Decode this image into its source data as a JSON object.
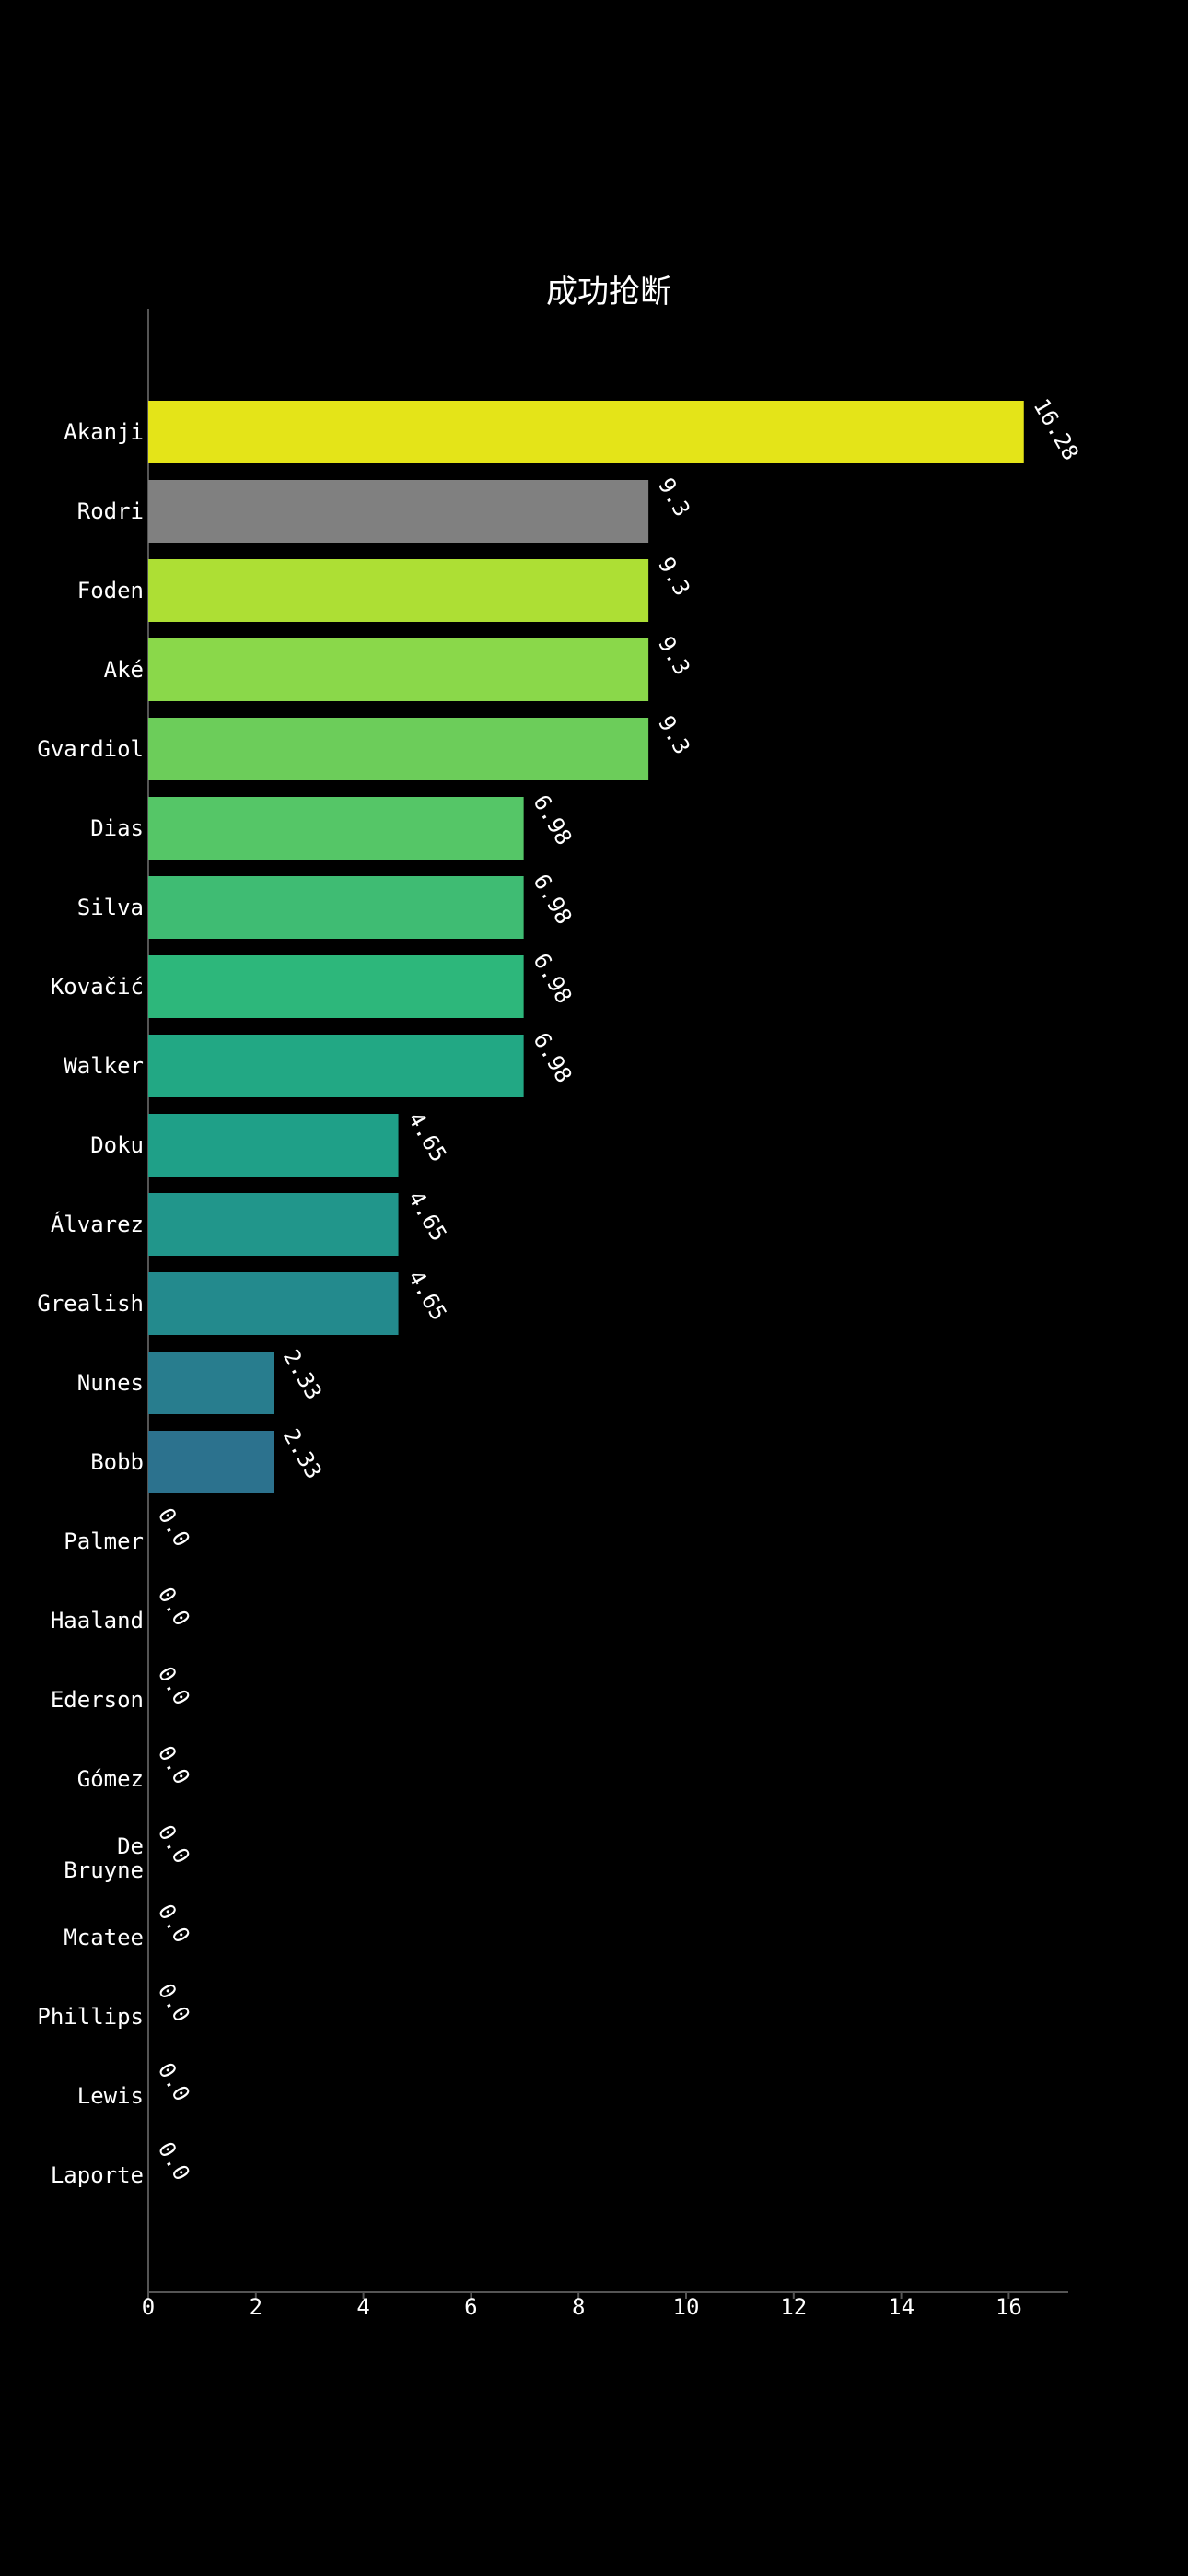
{
  "chart_data": {
    "type": "bar",
    "orientation": "horizontal",
    "title": "成功抢断",
    "xlabel": "",
    "ylabel": "",
    "xlim": [
      0,
      17.1
    ],
    "xticks": [
      0,
      2,
      4,
      6,
      8,
      10,
      12,
      14,
      16
    ],
    "grid": false,
    "categories": [
      {
        "label": [
          "Akanji"
        ],
        "value": 16.28,
        "value_label": "16.28",
        "color": "#e4e418"
      },
      {
        "label": [
          "Rodri"
        ],
        "value": 9.3,
        "value_label": "9.3",
        "color": "#808080"
      },
      {
        "label": [
          "Foden"
        ],
        "value": 9.3,
        "value_label": "9.3",
        "color": "#addf34"
      },
      {
        "label": [
          "Aké"
        ],
        "value": 9.3,
        "value_label": "9.3",
        "color": "#8ad84a"
      },
      {
        "label": [
          "Gvardiol"
        ],
        "value": 9.3,
        "value_label": "9.3",
        "color": "#6ccd5a"
      },
      {
        "label": [
          "Dias"
        ],
        "value": 6.98,
        "value_label": "6.98",
        "color": "#55c667"
      },
      {
        "label": [
          "Silva"
        ],
        "value": 6.98,
        "value_label": "6.98",
        "color": "#3fbc73"
      },
      {
        "label": [
          "Kovačić"
        ],
        "value": 6.98,
        "value_label": "6.98",
        "color": "#2db77b"
      },
      {
        "label": [
          "Walker"
        ],
        "value": 6.98,
        "value_label": "6.98",
        "color": "#22a884"
      },
      {
        "label": [
          "Doku"
        ],
        "value": 4.65,
        "value_label": "4.65",
        "color": "#1fa088"
      },
      {
        "label": [
          "Álvarez"
        ],
        "value": 4.65,
        "value_label": "4.65",
        "color": "#21968b"
      },
      {
        "label": [
          "Grealish"
        ],
        "value": 4.65,
        "value_label": "4.65",
        "color": "#238a8d"
      },
      {
        "label": [
          "Nunes"
        ],
        "value": 2.33,
        "value_label": "2.33",
        "color": "#287d8e"
      },
      {
        "label": [
          "Bobb"
        ],
        "value": 2.33,
        "value_label": "2.33",
        "color": "#2c728e"
      },
      {
        "label": [
          "Palmer"
        ],
        "value": 0.0,
        "value_label": "0.0",
        "color": "#31688e"
      },
      {
        "label": [
          "Haaland"
        ],
        "value": 0.0,
        "value_label": "0.0",
        "color": "#355e8d"
      },
      {
        "label": [
          "Ederson"
        ],
        "value": 0.0,
        "value_label": "0.0",
        "color": "#39558c"
      },
      {
        "label": [
          "Gómez"
        ],
        "value": 0.0,
        "value_label": "0.0",
        "color": "#3e4a89"
      },
      {
        "label": [
          "De",
          "Bruyne"
        ],
        "value": 0.0,
        "value_label": "0.0",
        "color": "#423f85"
      },
      {
        "label": [
          "Mcatee"
        ],
        "value": 0.0,
        "value_label": "0.0",
        "color": "#453581"
      },
      {
        "label": [
          "Phillips"
        ],
        "value": 0.0,
        "value_label": "0.0",
        "color": "#472a7a"
      },
      {
        "label": [
          "Lewis"
        ],
        "value": 0.0,
        "value_label": "0.0",
        "color": "#481d6f"
      },
      {
        "label": [
          "Laporte"
        ],
        "value": 0.0,
        "value_label": "0.0",
        "color": "#471063"
      }
    ]
  }
}
